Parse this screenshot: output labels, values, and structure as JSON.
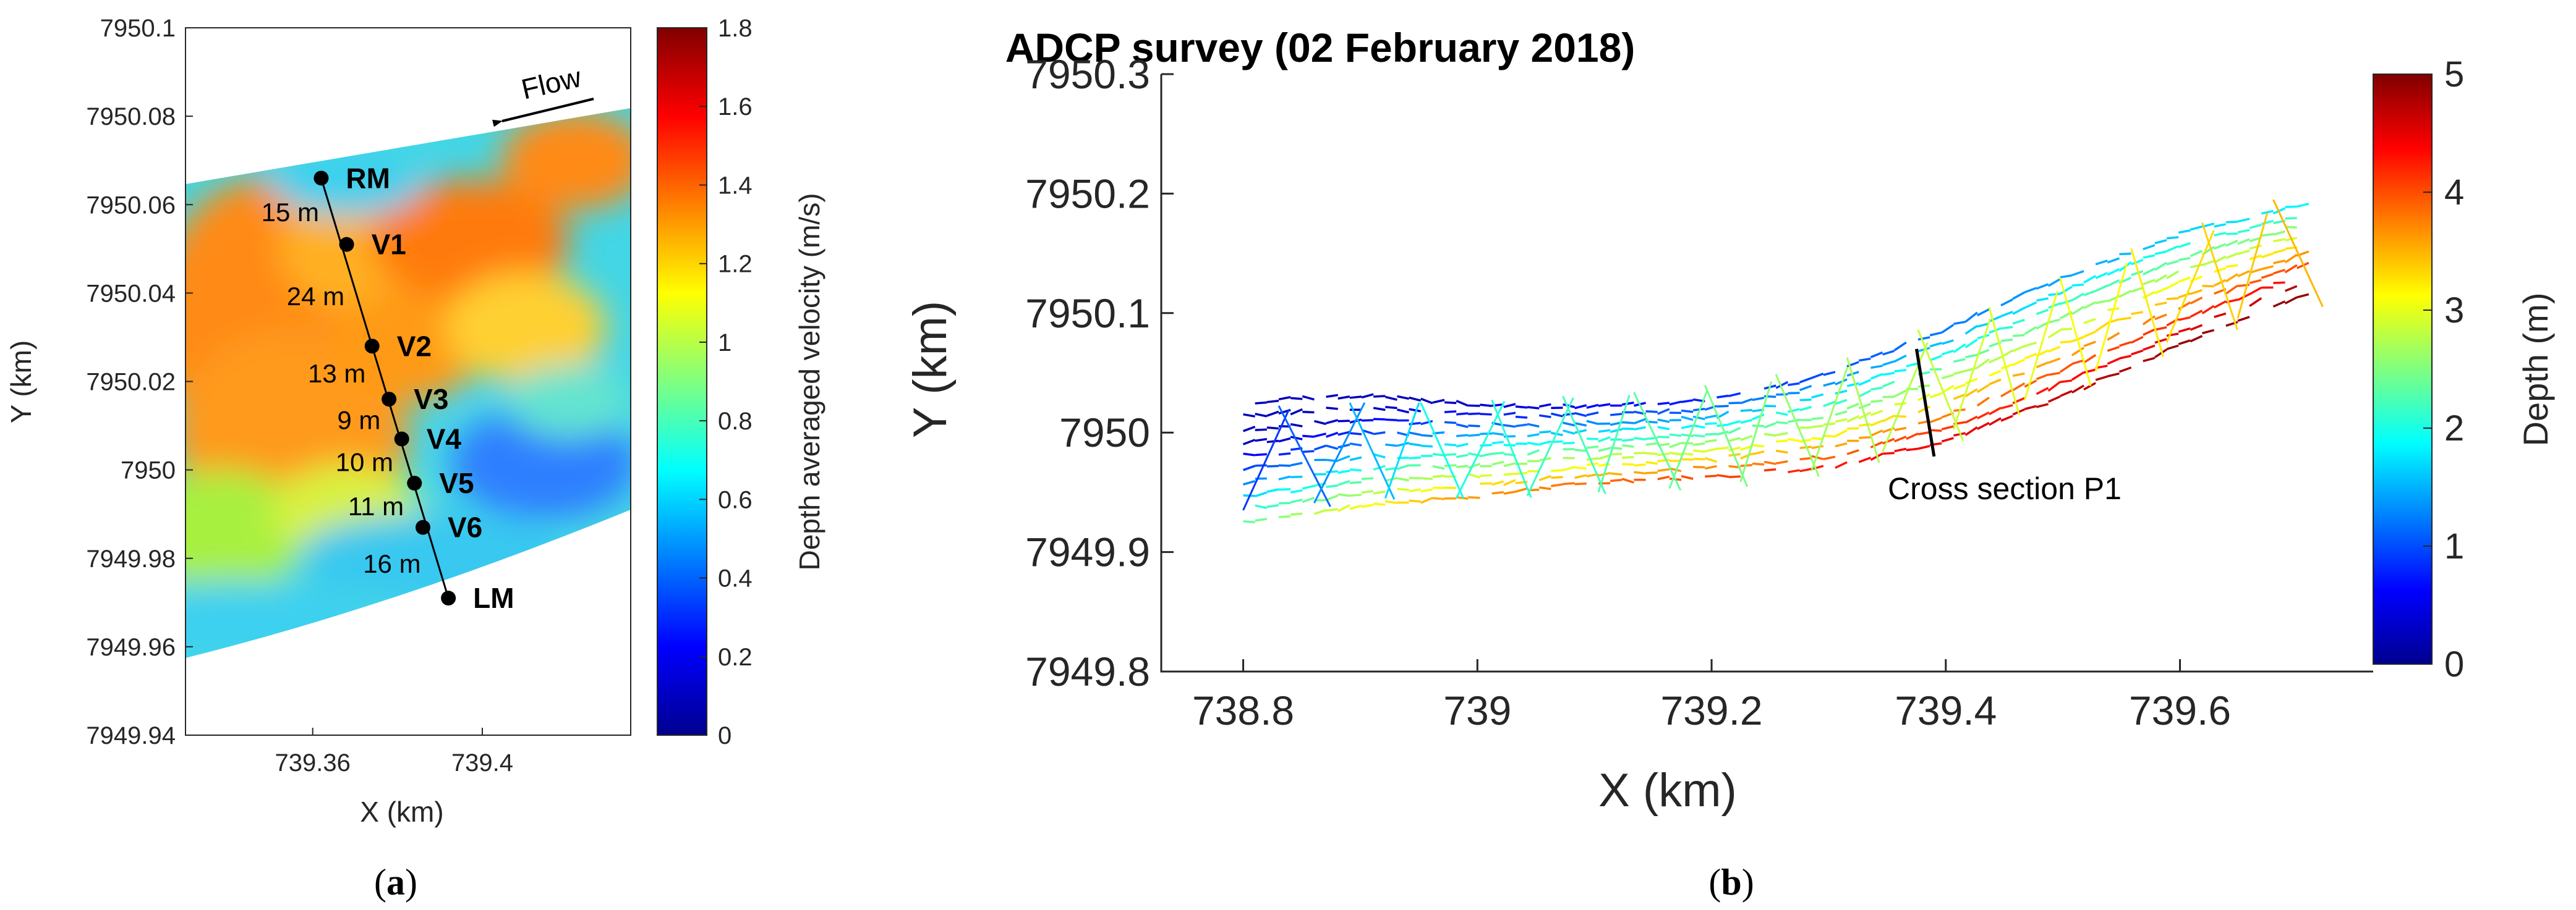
{
  "panel_a_caption": {
    "open": "(",
    "letter": "a",
    "close": ")"
  },
  "panel_b_caption": {
    "open": "(",
    "letter": "b",
    "close": ")"
  },
  "chart_data": [
    {
      "type": "heatmap",
      "panel": "a",
      "title": "",
      "xlabel": "X (km)",
      "ylabel": "Y (km)",
      "xlim": [
        739.33,
        739.435
      ],
      "ylim": [
        7949.94,
        7950.1
      ],
      "xticks": [
        739.36,
        739.4
      ],
      "xtick_labels": [
        "739.36",
        "739.4"
      ],
      "yticks": [
        7949.94,
        7949.96,
        7949.98,
        7950,
        7950.02,
        7950.04,
        7950.06,
        7950.08,
        7950.1
      ],
      "ytick_labels": [
        "7949.94",
        "7949.96",
        "7949.98",
        "7950",
        "7950.02",
        "7950.04",
        "7950.06",
        "7950.08",
        "7950.1"
      ],
      "colorbar": {
        "label": "Depth averaged velocity (m/s)",
        "range": [
          0,
          1.8
        ],
        "ticks": [
          0,
          0.2,
          0.4,
          0.6,
          0.8,
          1,
          1.2,
          1.4,
          1.6,
          1.8
        ],
        "tick_labels": [
          "0",
          "0.2",
          "0.4",
          "0.6",
          "0.8",
          "1",
          "1.2",
          "1.4",
          "1.6",
          "1.8"
        ],
        "colormap": "jet"
      },
      "flow_label": "Flow",
      "transect_points": [
        {
          "label": "RM",
          "x": 739.362,
          "y": 7950.066
        },
        {
          "label": "V1",
          "x": 739.368,
          "y": 7950.051
        },
        {
          "label": "V2",
          "x": 739.374,
          "y": 7950.028
        },
        {
          "label": "V3",
          "x": 739.378,
          "y": 7950.016
        },
        {
          "label": "V4",
          "x": 739.381,
          "y": 7950.007
        },
        {
          "label": "V5",
          "x": 739.384,
          "y": 7949.997
        },
        {
          "label": "V6",
          "x": 739.386,
          "y": 7949.987
        },
        {
          "label": "LM",
          "x": 739.392,
          "y": 7949.971
        }
      ],
      "segment_distances": [
        "15 m",
        "24 m",
        "13 m",
        "9 m",
        "10 m",
        "11 m",
        "16 m"
      ],
      "grid": false
    },
    {
      "type": "scatter",
      "panel": "b",
      "title": "ADCP survey (02 February 2018)",
      "xlabel": "X (km)",
      "ylabel": "Y (km)",
      "xlim": [
        738.73,
        739.765
      ],
      "ylim": [
        7949.8,
        7950.3
      ],
      "xticks": [
        738.8,
        739,
        739.2,
        739.4,
        739.6
      ],
      "xtick_labels": [
        "738.8",
        "739",
        "739.2",
        "739.4",
        "739.6"
      ],
      "yticks": [
        7949.8,
        7949.9,
        7950,
        7950.1,
        7950.2,
        7950.3
      ],
      "ytick_labels": [
        "7949.8",
        "7949.9",
        "7950",
        "7950.1",
        "7950.2",
        "7950.3"
      ],
      "colorbar": {
        "label": "Depth (m)",
        "range": [
          0,
          5
        ],
        "ticks": [
          0,
          1,
          2,
          3,
          4,
          5
        ],
        "tick_labels": [
          "0",
          "1",
          "2",
          "3",
          "4",
          "5"
        ],
        "colormap": "jet"
      },
      "annotation": {
        "text": "Cross section P1",
        "line": [
          [
            739.375,
            7950.07
          ],
          [
            739.39,
            7949.98
          ]
        ]
      },
      "centerline": [
        {
          "x": 738.8,
          "y": 7949.975
        },
        {
          "x": 738.9,
          "y": 7949.985
        },
        {
          "x": 739.0,
          "y": 7949.985
        },
        {
          "x": 739.1,
          "y": 7949.99
        },
        {
          "x": 739.2,
          "y": 7949.995
        },
        {
          "x": 739.3,
          "y": 7950.01
        },
        {
          "x": 739.4,
          "y": 7950.04
        },
        {
          "x": 739.5,
          "y": 7950.08
        },
        {
          "x": 739.6,
          "y": 7950.12
        },
        {
          "x": 739.71,
          "y": 7950.155
        }
      ],
      "grid": false
    }
  ]
}
